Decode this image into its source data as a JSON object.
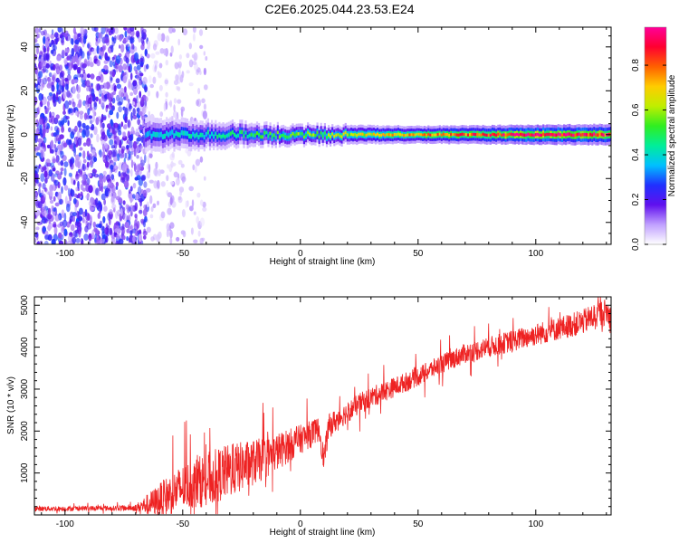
{
  "title": "C2E6.2025.044.23.53.E24",
  "colors": {
    "snr_line": "#ee2222",
    "scatter_sparse": "#7a22ee",
    "scatter_faint": "#d8b8ff"
  },
  "chart_data": [
    {
      "type": "heatmap",
      "xlabel": "Height of straight line (km)",
      "ylabel": "Frequency (Hz)",
      "xlim": [
        -113,
        132
      ],
      "ylim": [
        -50,
        49
      ],
      "xticks": [
        -100,
        -50,
        0,
        50,
        100
      ],
      "yticks": [
        -40,
        -20,
        0,
        20,
        40
      ],
      "colorbar": {
        "label": "Normalized spectral amplitude",
        "range": [
          0,
          0.97
        ],
        "ticks": [
          0.0,
          0.2,
          0.4,
          0.6,
          0.8
        ],
        "colormap": "rainbow",
        "stops": [
          "#ffffff",
          "#c0a0ff",
          "#6010ee",
          "#2030ff",
          "#00c0ff",
          "#00ee99",
          "#30ee20",
          "#c0ee00",
          "#ffcc00",
          "#ff6000",
          "#ff0030",
          "#ff0099"
        ]
      },
      "band": {
        "center_hz": 0,
        "half_width_hz": [
          {
            "x": -66,
            "hz": 5
          },
          {
            "x": -40,
            "hz": 4
          },
          {
            "x": -10,
            "hz": 3
          },
          {
            "x": 50,
            "hz": 2.5
          },
          {
            "x": 132,
            "hz": 3
          }
        ],
        "peak_amplitude": [
          {
            "x": -66,
            "amp": 0.35
          },
          {
            "x": -30,
            "amp": 0.45
          },
          {
            "x": 0,
            "amp": 0.55
          },
          {
            "x": 50,
            "amp": 0.72
          },
          {
            "x": 80,
            "amp": 0.85
          },
          {
            "x": 100,
            "amp": 0.95
          },
          {
            "x": 132,
            "amp": 0.85
          }
        ]
      },
      "noise_regions": [
        {
          "x_range": [
            -113,
            -65
          ],
          "density": "dense",
          "amp": 0.22
        },
        {
          "x_range": [
            -65,
            -40
          ],
          "density": "sparse",
          "amp": 0.08
        }
      ]
    },
    {
      "type": "line",
      "xlabel": "Height of straight line (km)",
      "ylabel": "SNR (10 * v/v)",
      "xlim": [
        -113,
        132
      ],
      "ylim": [
        0,
        5200
      ],
      "xticks": [
        -100,
        -50,
        0,
        50,
        100
      ],
      "yticks": [
        1000,
        2000,
        3000,
        4000,
        5000
      ],
      "series": [
        {
          "x": [
            -113,
            -100,
            -90,
            -80,
            -70,
            -65,
            -60,
            -55,
            -50,
            -45,
            -40,
            -35,
            -30,
            -25,
            -20,
            -15,
            -10,
            -5,
            0,
            5,
            8,
            10,
            12,
            15,
            20,
            25,
            30,
            40,
            50,
            60,
            70,
            80,
            90,
            100,
            110,
            120,
            125,
            130,
            132
          ],
          "y": [
            150,
            150,
            160,
            160,
            170,
            250,
            350,
            500,
            650,
            750,
            850,
            950,
            1050,
            1150,
            1250,
            1350,
            1500,
            1650,
            1800,
            1950,
            2050,
            1300,
            2100,
            2250,
            2450,
            2650,
            2800,
            3050,
            3300,
            3600,
            3850,
            4000,
            4150,
            4300,
            4450,
            4600,
            4750,
            4850,
            4700
          ],
          "noise_amplitude": [
            60,
            60,
            60,
            60,
            80,
            250,
            400,
            500,
            550,
            600,
            650,
            650,
            650,
            600,
            550,
            500,
            450,
            400,
            350,
            320,
            300,
            300,
            300,
            280,
            250,
            250,
            250,
            240,
            230,
            230,
            240,
            250,
            260,
            270,
            280,
            300,
            320,
            320,
            320
          ]
        }
      ]
    }
  ]
}
